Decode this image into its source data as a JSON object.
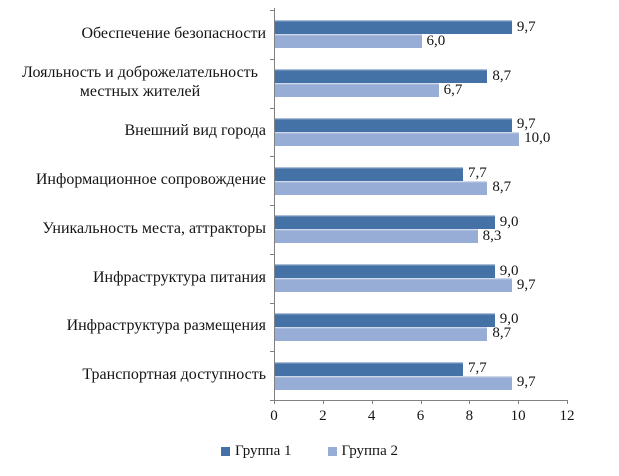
{
  "chart_data": {
    "type": "bar",
    "orientation": "horizontal",
    "title": "",
    "xlabel": "",
    "ylabel": "",
    "xlim": [
      0,
      12
    ],
    "xticks": [
      0,
      2,
      4,
      6,
      8,
      10,
      12
    ],
    "xtick_labels": [
      "0",
      "2",
      "4",
      "6",
      "8",
      "10",
      "12"
    ],
    "grid": false,
    "legend_position": "bottom-center",
    "axis_color": "#808080",
    "text_color": "#141414",
    "categories": [
      "Обеспечение безопасности",
      "Лояльность и доброжелательность местных жителей",
      "Внешний вид города",
      "Информационное сопровождение",
      "Уникальность места, аттракторы",
      "Инфраструктура питания",
      "Инфраструктура размещения",
      "Транспортная доступность"
    ],
    "series": [
      {
        "name": "Группа 1",
        "color": "#4472a6",
        "values": [
          9.7,
          8.7,
          9.7,
          7.7,
          9.0,
          9.0,
          9.0,
          7.7
        ],
        "labels": [
          "9,7",
          "8,7",
          "9,7",
          "7,7",
          "9,0",
          "9,0",
          "9,0",
          "7,7"
        ]
      },
      {
        "name": "Группа 2",
        "color": "#97add5",
        "values": [
          6.0,
          6.7,
          10.0,
          8.7,
          8.3,
          9.7,
          8.7,
          9.7
        ],
        "labels": [
          "6,0",
          "6,7",
          "10,0",
          "8,7",
          "8,3",
          "9,7",
          "8,7",
          "9,7"
        ]
      }
    ]
  }
}
